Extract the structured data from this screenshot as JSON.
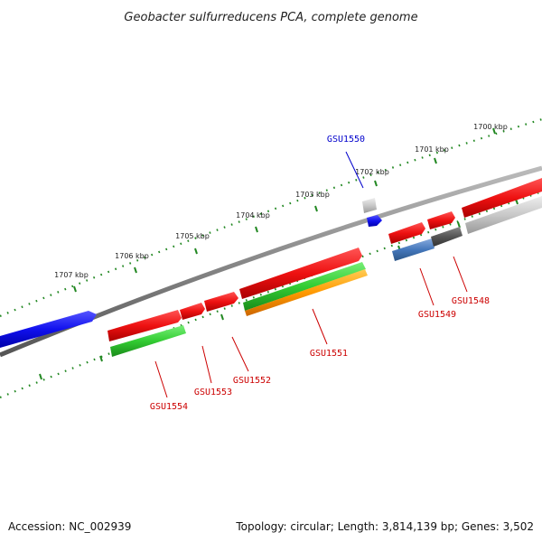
{
  "title": "Geobacter sulfurreducens PCA, complete genome",
  "footer": {
    "accession": "Accession: NC_002939",
    "topology": "Topology: circular; Length: 3,814,139 bp; Genes: 3,502"
  },
  "kbp_labels": [
    "1700 kbp",
    "1701 kbp",
    "1702 kbp",
    "1703 kbp",
    "1704 kbp",
    "1705 kbp",
    "1706 kbp",
    "1707 kbp"
  ],
  "gene_labels": {
    "gsu1550": "GSU1550",
    "gsu1548": "GSU1548",
    "gsu1549": "GSU1549",
    "gsu1551": "GSU1551",
    "gsu1552": "GSU1552",
    "gsu1553": "GSU1553",
    "gsu1554": "GSU1554"
  },
  "colors": {
    "red": "#ee1111",
    "green": "#33cc33",
    "orange": "#ff9900",
    "blue": "#1111ee",
    "steel": "#4477bb",
    "gray": "#888888",
    "darkgray": "#555555",
    "lightgray": "#c8c8c8",
    "tick": "#228822",
    "label_red": "#cc0000",
    "label_blue": "#0000cc"
  }
}
